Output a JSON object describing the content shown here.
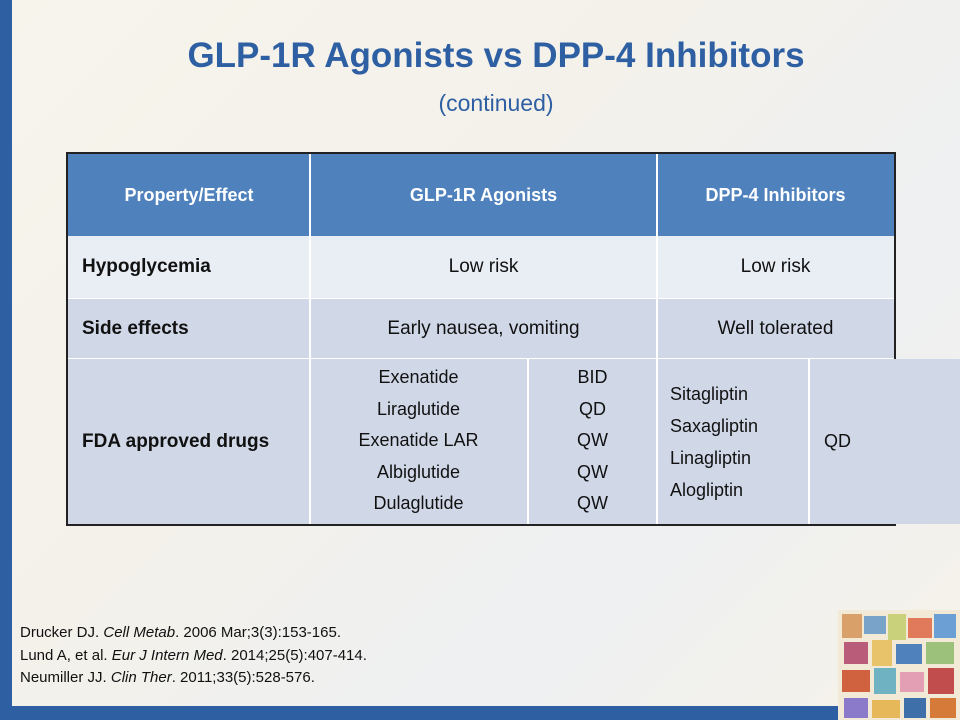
{
  "header": {
    "title": "GLP-1R Agonists vs DPP-4 Inhibitors",
    "subtitle": "(continued)"
  },
  "table": {
    "columns": [
      "Property/Effect",
      "GLP-1R Agonists",
      "DPP-4 Inhibitors"
    ],
    "rows": [
      [
        "Hypoglycemia",
        "Low risk",
        "Low risk"
      ],
      [
        "Side effects",
        "Early nausea, vomiting",
        "Well tolerated"
      ]
    ],
    "fda_row": {
      "label": "FDA approved drugs",
      "glp1_drugs": [
        "Exenatide",
        "Liraglutide",
        "Exenatide LAR",
        "Albiglutide",
        "Dulaglutide"
      ],
      "glp1_dosing": [
        "BID",
        "QD",
        "QW",
        "QW",
        "QW"
      ],
      "dpp4_drugs": [
        "Sitagliptin",
        "Saxagliptin",
        "Linagliptin",
        "Alogliptin"
      ],
      "dpp4_dosing": [
        "QD"
      ]
    }
  },
  "references": [
    {
      "author": "Drucker DJ.",
      "journal": "Cell Metab",
      "rest": ". 2006 Mar;3(3):153-165."
    },
    {
      "author": "Lund A, et al.",
      "journal": "Eur J Intern Med",
      "rest": ". 2014;25(5):407-414."
    },
    {
      "author": "Neumiller JJ.",
      "journal": "Clin Ther",
      "rest": ". 2011;33(5):528-576."
    }
  ]
}
